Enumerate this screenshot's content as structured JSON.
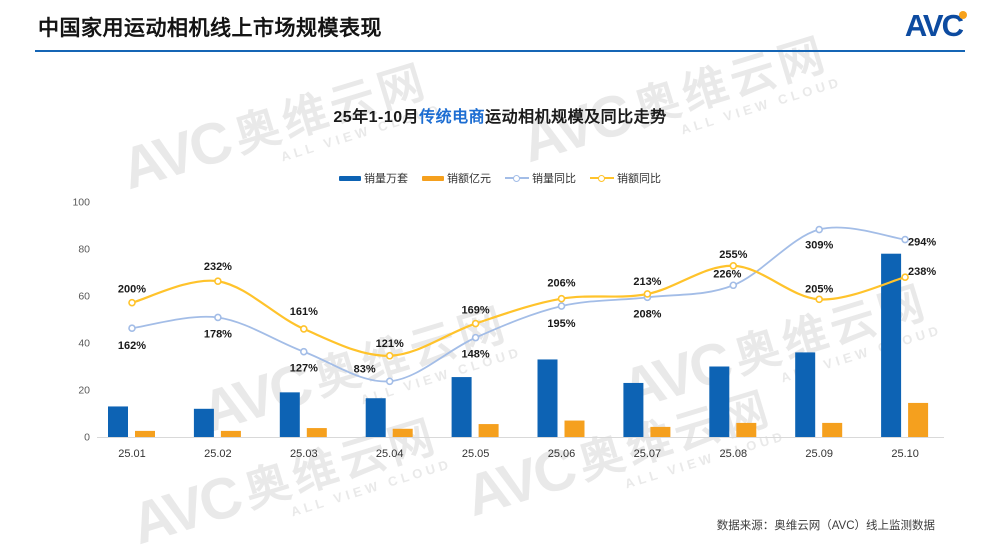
{
  "header": {
    "title": "中国家用运动相机线上市场规模表现",
    "logo": "AVC"
  },
  "watermark": {
    "logo": "AVC",
    "cn": "奥维云网",
    "en": "ALL VIEW CLOUD"
  },
  "chart": {
    "title_prefix": "25年1-10月",
    "title_highlight": "传统电商",
    "title_suffix": "运动相机规模及同比走势"
  },
  "legend": {
    "items": [
      {
        "label": "销量万套",
        "type": "bar",
        "color": "#0d63b4"
      },
      {
        "label": "销额亿元",
        "type": "bar",
        "color": "#f5a01e"
      },
      {
        "label": "销量同比",
        "type": "line",
        "color": "#a3bde7"
      },
      {
        "label": "销额同比",
        "type": "line",
        "color": "#ffc32b"
      }
    ]
  },
  "source": "数据来源：奥维云网（AVC）线上监测数据",
  "chart_data": {
    "type": "combo-bar-line",
    "title": "25年1-10月传统电商运动相机规模及同比走势",
    "categories": [
      "25.01",
      "25.02",
      "25.03",
      "25.04",
      "25.05",
      "25.06",
      "25.07",
      "25.08",
      "25.09",
      "25.10"
    ],
    "bar_series": [
      {
        "name": "销量万套",
        "color": "#0d63b4",
        "values": [
          13,
          12,
          19,
          16.5,
          25.5,
          33,
          23,
          30,
          36,
          78
        ]
      },
      {
        "name": "销额亿元",
        "color": "#f5a01e",
        "values": [
          2.6,
          2.6,
          3.8,
          3.5,
          5.5,
          7,
          4.3,
          6,
          6,
          14.5
        ]
      }
    ],
    "line_series": [
      {
        "name": "销量同比",
        "color": "#a3bde7",
        "values_pct": [
          162,
          178,
          127,
          83,
          148,
          195,
          208,
          226,
          309,
          294
        ],
        "labels": [
          "162%",
          "178%",
          "127%",
          "83%",
          "148%",
          "195%",
          "208%",
          "226%",
          "309%",
          "294%"
        ],
        "label_dx": [
          0,
          0,
          0,
          -25,
          0,
          0,
          0,
          -6,
          0,
          17
        ],
        "label_dy": [
          21,
          20,
          20,
          -9,
          20,
          21,
          20,
          -8,
          19,
          6
        ]
      },
      {
        "name": "销额同比",
        "color": "#ffc32b",
        "values_pct": [
          200,
          232,
          161,
          121,
          169,
          206,
          213,
          255,
          205,
          238
        ],
        "labels": [
          "200%",
          "232%",
          "161%",
          "121%",
          "169%",
          "206%",
          "213%",
          "255%",
          "205%",
          "238%"
        ],
        "label_dx": [
          0,
          0,
          0,
          0,
          0,
          0,
          0,
          0,
          0,
          17
        ],
        "label_dy": [
          -10,
          -11,
          -14,
          -9,
          -10,
          -12,
          -9,
          -8,
          -7,
          -2
        ]
      }
    ],
    "y_axis": {
      "min": 0,
      "max": 100,
      "ticks": [
        0,
        20,
        40,
        60,
        80,
        100
      ]
    },
    "line_axis": {
      "min": 0,
      "max": 350,
      "unit": "%"
    },
    "grid": false,
    "legend_position": "top"
  }
}
